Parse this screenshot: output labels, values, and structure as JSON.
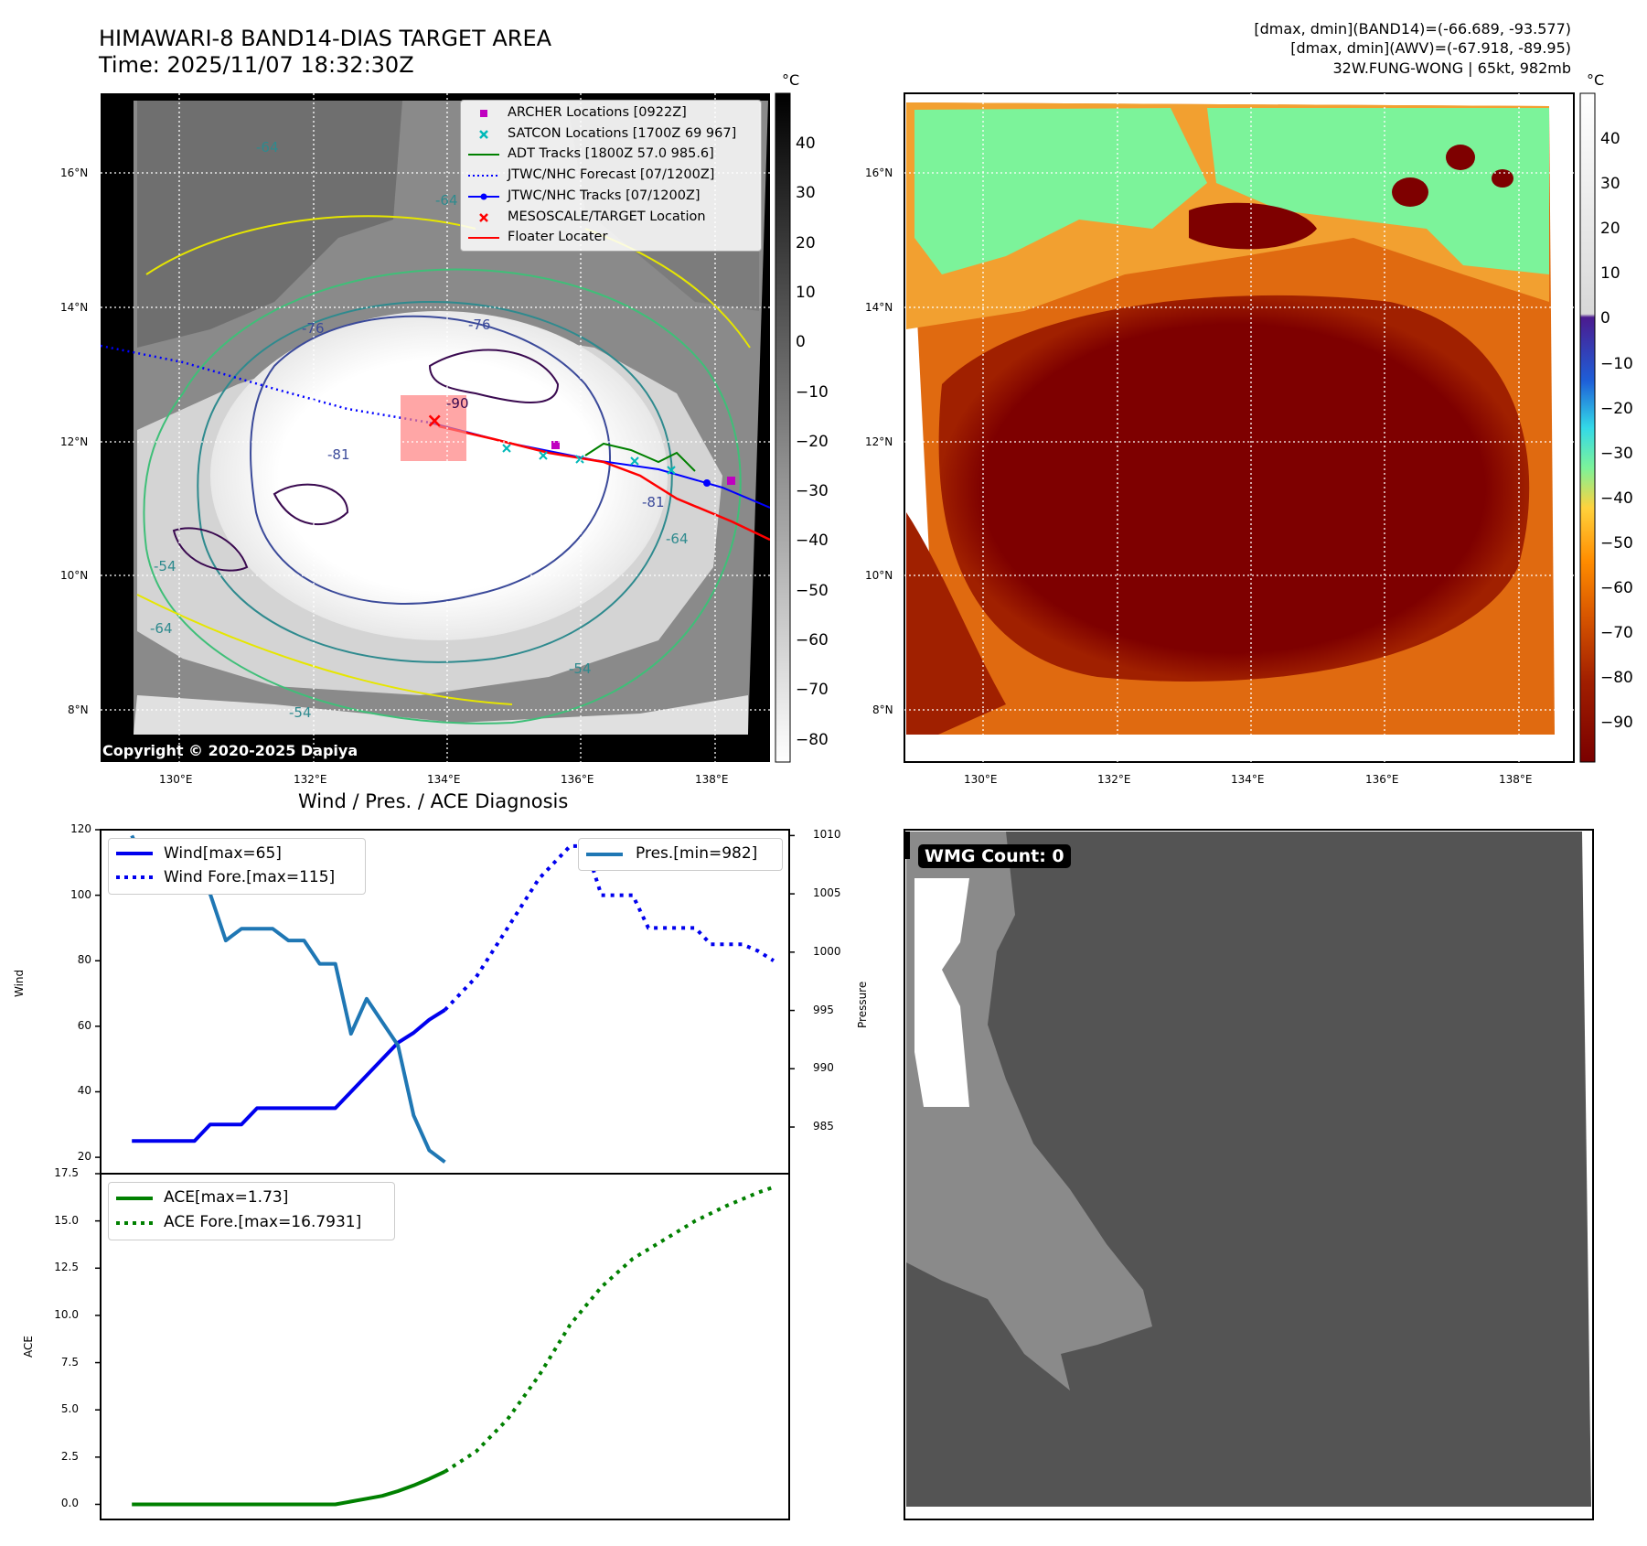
{
  "header": {
    "title_line1": "HIMAWARI-8 BAND14-DIAS TARGET AREA",
    "title_line2": "Time: 2025/11/07 18:32:30Z",
    "info_line1": "[dmax, dmin](BAND14)=(-66.689, -93.577)",
    "info_line2": "[dmax, dmin](AWV)=(-67.918, -89.95)",
    "info_line3": "32W.FUNG-WONG | 65kt, 982mb"
  },
  "maps": {
    "lat_labels": [
      "16°N",
      "14°N",
      "12°N",
      "10°N",
      "8°N"
    ],
    "lon_labels": [
      "130°E",
      "132°E",
      "134°E",
      "136°E",
      "138°E"
    ],
    "copyright": "Copyright © 2020-2025 Dapiya",
    "contour_labels": [
      "-64",
      "-64",
      "-76",
      "-90",
      "-81",
      "-76",
      "-81",
      "-54",
      "-64",
      "-54",
      "-64",
      "-54"
    ],
    "target_marker": "×",
    "legend": [
      {
        "symbol": "square",
        "color": "#c000c0",
        "label": "ARCHER Locations [0922Z]"
      },
      {
        "symbol": "x",
        "color": "#00b8b8",
        "label": "SATCON Locations [1700Z 69 967]"
      },
      {
        "symbol": "line",
        "color": "#008000",
        "label": "ADT Tracks [1800Z 57.0 985.6]"
      },
      {
        "symbol": "dotted",
        "color": "#0000ff",
        "label": "JTWC/NHC Forecast [07/1200Z]"
      },
      {
        "symbol": "line-dot",
        "color": "#0000ff",
        "label": "JTWC/NHC Tracks [07/1200Z]"
      },
      {
        "symbol": "x",
        "color": "#ff0000",
        "label": "MESOSCALE/TARGET Location"
      },
      {
        "symbol": "line",
        "color": "#ff0000",
        "label": "Floater Locater"
      }
    ],
    "colorbar_unit": "°C",
    "colorbar_left_ticks": [
      "40",
      "30",
      "20",
      "10",
      "0",
      "−10",
      "−20",
      "−30",
      "−40",
      "−50",
      "−60",
      "−70",
      "−80"
    ],
    "colorbar_right_ticks": [
      "40",
      "30",
      "20",
      "10",
      "0",
      "−10",
      "−20",
      "−30",
      "−40",
      "−50",
      "−60",
      "−70",
      "−80",
      "−90"
    ]
  },
  "wmg": {
    "label": "WMG Count: 0"
  },
  "chart_data": [
    {
      "type": "line",
      "title": "Wind / Pres. / ACE Diagnosis",
      "ylabel": "Wind",
      "ylabel_right": "Pressure",
      "ylim": [
        15,
        120
      ],
      "ylim_right": [
        981,
        1010.5
      ],
      "xlim": [
        0,
        44
      ],
      "yticks": [
        20,
        40,
        60,
        80,
        100,
        120
      ],
      "yticks_right": [
        985,
        990,
        995,
        1000,
        1005,
        1010
      ],
      "series": [
        {
          "name": "Wind[max=65]",
          "color": "#0000ee",
          "style": "solid",
          "x": [
            2,
            4,
            6,
            7,
            8,
            9,
            10,
            11,
            12,
            13,
            14,
            15,
            16,
            17,
            18,
            19,
            20,
            21,
            22
          ],
          "values": [
            25,
            25,
            25,
            30,
            30,
            30,
            35,
            35,
            35,
            35,
            35,
            35,
            40,
            45,
            50,
            55,
            58,
            62,
            65
          ]
        },
        {
          "name": "Wind Fore.[max=115]",
          "color": "#0000ee",
          "style": "dotted",
          "x": [
            22,
            24,
            26,
            28,
            29,
            30,
            31,
            32,
            33,
            34,
            35,
            36,
            37,
            38,
            39,
            40,
            41,
            42,
            43
          ],
          "values": [
            65,
            75,
            90,
            105,
            110,
            115,
            115,
            100,
            100,
            100,
            90,
            90,
            90,
            90,
            85,
            85,
            85,
            83,
            80
          ]
        },
        {
          "name": "Pres.[min=982]",
          "color": "#1f77b4",
          "style": "solid",
          "axis": "right",
          "x": [
            2,
            3,
            5,
            7,
            8,
            9,
            10,
            11,
            12,
            13,
            14,
            15,
            16,
            17,
            18,
            19,
            20,
            21,
            22
          ],
          "values": [
            1010,
            1007,
            1007,
            1005,
            1001,
            1002,
            1002,
            1002,
            1001,
            1001,
            999,
            999,
            993,
            996,
            994,
            992,
            986,
            983,
            982
          ]
        }
      ]
    },
    {
      "type": "line",
      "ylabel": "ACE",
      "ylim": [
        -0.8,
        17.5
      ],
      "xlim": [
        0,
        44
      ],
      "yticks": [
        "0.0",
        "2.5",
        "5.0",
        "7.5",
        "10.0",
        "12.5",
        "15.0",
        "17.5"
      ],
      "series": [
        {
          "name": "ACE[max=1.73]",
          "color": "#008000",
          "style": "solid",
          "x": [
            2,
            4,
            6,
            8,
            10,
            12,
            14,
            15,
            16,
            17,
            18,
            19,
            20,
            21,
            22
          ],
          "values": [
            0,
            0,
            0,
            0,
            0,
            0,
            0,
            0,
            0.15,
            0.3,
            0.45,
            0.7,
            1.0,
            1.35,
            1.73
          ]
        },
        {
          "name": "ACE Fore.[max=16.7931]",
          "color": "#008000",
          "style": "dotted",
          "x": [
            22,
            24,
            26,
            28,
            30,
            32,
            34,
            36,
            38,
            40,
            42,
            43
          ],
          "values": [
            1.73,
            2.8,
            4.5,
            6.8,
            9.5,
            11.5,
            13.0,
            14.0,
            15.0,
            15.8,
            16.5,
            16.79
          ]
        }
      ]
    }
  ]
}
